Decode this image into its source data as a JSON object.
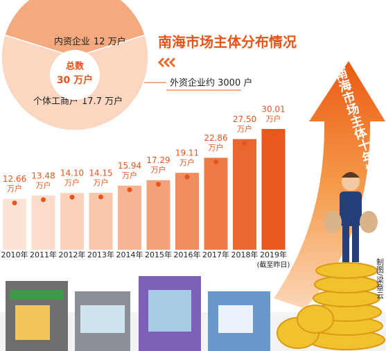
{
  "chart_data": [
    {
      "type": "pie",
      "title": "南海市场主体分布情况",
      "categories": [
        "内资企业",
        "个体工商户"
      ],
      "values": [
        12,
        17.7
      ],
      "value_labels": [
        "12 万户",
        "17.7 万户"
      ],
      "colors": [
        "#f4a97f",
        "#fbd6c0"
      ],
      "center_title": "总数",
      "total": {
        "value": 30,
        "label": "30 万户"
      },
      "annotation": "外资企业约 3000 户"
    },
    {
      "type": "bar",
      "title": "南海市场主体十年增长情况",
      "categories": [
        "2010年",
        "2011年",
        "2012年",
        "2013年",
        "2014年",
        "2015年",
        "2016年",
        "2017年",
        "2018年",
        "2019年"
      ],
      "values": [
        12.66,
        13.48,
        14.1,
        14.15,
        15.94,
        17.29,
        19.11,
        22.86,
        27.5,
        30.01
      ],
      "value_labels": [
        "12.66",
        "13.48",
        "14.10",
        "14.15",
        "15.94",
        "17.29",
        "19.11",
        "22.86",
        "27.50",
        "30.01"
      ],
      "value_unit": "万户",
      "colors": [
        "#fbe3d6",
        "#fbdccb",
        "#f9d1bc",
        "#f8c6ab",
        "#f6b493",
        "#f4a17a",
        "#f18e60",
        "#ee7a46",
        "#eb6730",
        "#e9581f"
      ],
      "note": "(截至昨日)",
      "credit": "制图/梁章云"
    }
  ]
}
